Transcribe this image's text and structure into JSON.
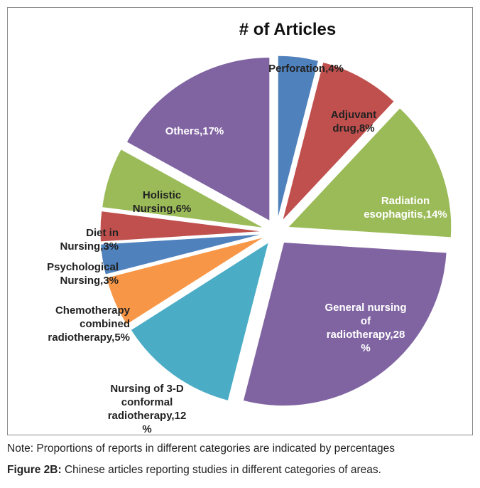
{
  "chart_data": {
    "type": "pie",
    "title": "# of Articles",
    "categories": [
      "Perforation",
      "Adjuvant drug",
      "Radiation esophagitis",
      "General nursing of radiotherapy",
      "Nursing of 3-D conformal radiotherapy",
      "Chemotherapy combined radiotherapy",
      "Psychological Nursing",
      "Diet in Nursing",
      "Holistic Nursing",
      "Others"
    ],
    "values": [
      4,
      8,
      14,
      28,
      12,
      5,
      3,
      3,
      6,
      17
    ],
    "value_unit": "%",
    "colors": [
      "#4f81bd",
      "#c0504d",
      "#9bbb59",
      "#8064a2",
      "#4bacc6",
      "#f79646",
      "#4f81bd",
      "#c0504d",
      "#9bbb59",
      "#8064a2"
    ],
    "legend": "none",
    "exploded": true,
    "slice_labels": [
      [
        "Perforation,4%"
      ],
      [
        "Adjuvant",
        "drug,8%"
      ],
      [
        "Radiation",
        "esophagitis,14%"
      ],
      [
        "General nursing",
        "of",
        "radiotherapy,28",
        "%"
      ],
      [
        "Nursing of 3-D",
        "conformal",
        "radiotherapy,12",
        "%"
      ],
      [
        "Chemotherapy",
        "combined",
        "radiotherapy,5%"
      ],
      [
        "Psychological",
        "Nursing,3%"
      ],
      [
        "Diet in",
        "Nursing,3%"
      ],
      [
        "Holistic",
        "Nursing,6%"
      ],
      [
        "Others,17%"
      ]
    ]
  },
  "note": "Note: Proportions of reports in different categories are indicated by percentages",
  "caption": {
    "label": "Figure 2B:",
    "text": " Chinese articles reporting studies in different categories of areas."
  }
}
